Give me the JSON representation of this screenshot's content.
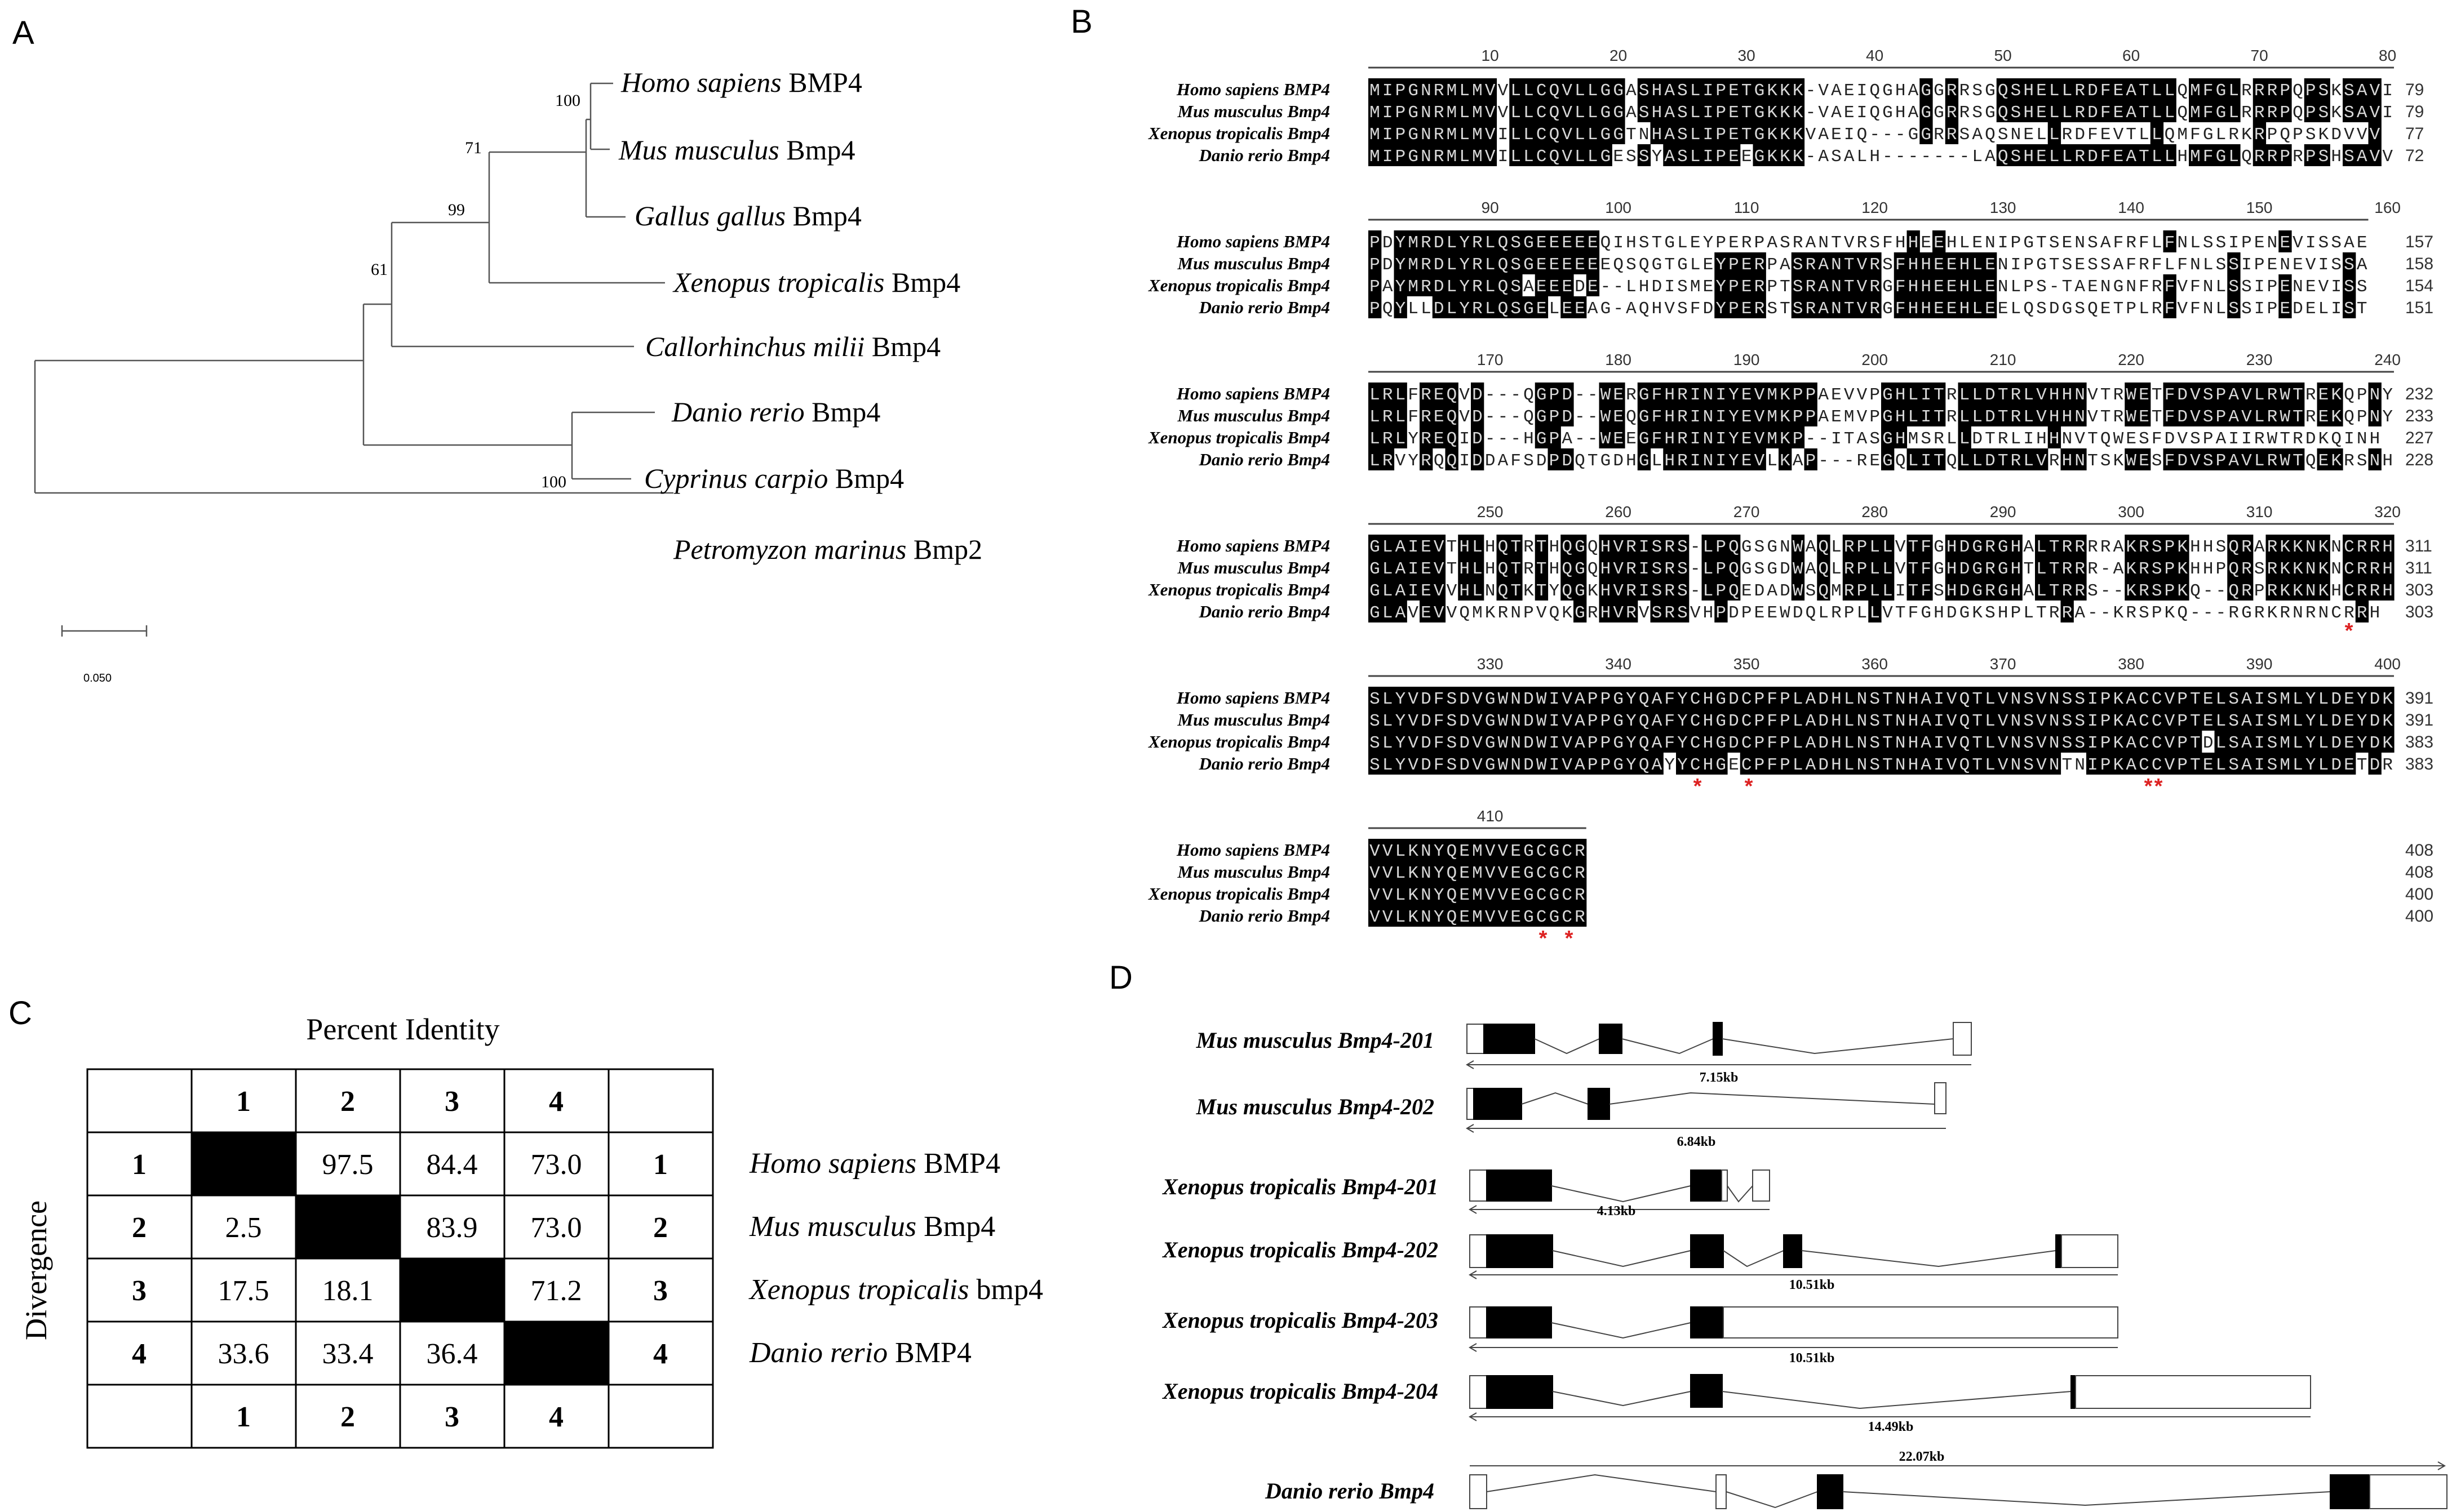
{
  "panels": {
    "A": {
      "label": "A",
      "taxa": [
        {
          "genus": "Homo sapiens",
          "gene": "BMP4"
        },
        {
          "genus": "Mus musculus",
          "gene": "Bmp4"
        },
        {
          "genus": "Gallus gallus",
          "gene": "Bmp4"
        },
        {
          "genus": "Xenopus tropicalis",
          "gene": "Bmp4"
        },
        {
          "genus": "Callorhinchus milii",
          "gene": "Bmp4"
        },
        {
          "genus": "Danio rerio",
          "gene": "Bmp4"
        },
        {
          "genus": "Cyprinus carpio",
          "gene": "Bmp4"
        },
        {
          "genus": "Petromyzon marinus",
          "gene": "Bmp2"
        }
      ],
      "bootstrap": {
        "homo_mus": "100",
        "gallus": "71",
        "xenopus": "99",
        "callorhinchus": "61",
        "danio_cyprinus": "100"
      },
      "scale": "0.050"
    },
    "B": {
      "label": "B",
      "species": [
        "Homo sapiens  BMP4",
        "Mus musculus Bmp4",
        "Xenopus tropicalis Bmp4",
        "Danio rerio Bmp4"
      ],
      "blocks": [
        {
          "ticks": [
            "10",
            "20",
            "30",
            "40",
            "50",
            "60",
            "70",
            "80"
          ],
          "seqs": [
            "MIPGNRMLMVVLLCQVLLGGASHASLIPETGKKK-VAEIQGHAGGRRSGQSHELLRDFEATLLQMFGLRRRPQPSKSAVI",
            "MIPGNRMLMVVLLCQVLLGGASHASLIPETGKKK-VAEIQGHAGGRRSGQSHELLRDFEATLLQMFGLRRRPQPSKSAVI",
            "MIPGNRMLMVILLCQVLLGGTNHASLIPETGKKKVAEIQ---GGRRSAQSNELLRDFEVTLLQMFGLRKRPQPSKDVVV",
            "MIPGNRMLMVILLCQVLLGESSYASLIPEEGKKK-ASALH-------LAQSHELLRDFEATLLHMFGLQRRPRPSHSAVV"
          ],
          "ends": [
            "79",
            "79",
            "77",
            "72"
          ]
        },
        {
          "ticks": [
            "90",
            "100",
            "110",
            "120",
            "130",
            "140",
            "150",
            "160"
          ],
          "seqs": [
            "PDYMRDLYRLQSGEEEEEQIHSTGLEYPERPASRANTVRSFHHEEHLENIPGTSENSAFRFLFNLSSIPENEVISSAE",
            "PDYMRDLYRLQSGEEEEEEQSQGTGLEYPERPASRANTVRSFHHEEHLENIPGTSESSAFRFLFNLSSIPENEVISSAE",
            "PAYMRDLYRLQSAEEEDE--LHDISMEYPERPTSRANTVRGFHHEEHLENLPS-TAENGNFRFVFNLSSIPENEVISSAE",
            "PQYLLDLYRLQSGELEEAG-AQHVSFDYPERSTSRANTVRGFHHEEHLEELQSDGSQETPLRFVFNLSSIPEDELISTAE"
          ],
          "ends": [
            "157",
            "158",
            "154",
            "151"
          ]
        },
        {
          "ticks": [
            "170",
            "180",
            "190",
            "200",
            "210",
            "220",
            "230",
            "240"
          ],
          "seqs": [
            "LRLFREQVD---QGPD--WERGFHRINIYEVMKPPAEVVPGHLITRLLDTRLVHHNVTRWETFDVSPAVLRWTREKQPNY",
            "LRLFREQVD---QGPD--WEQGFHRINIYEVMKPPAEMVPGHLITRLLDTRLVHHNVTRWETFDVSPAVLRWTREKQPNY",
            "LRLYREQID---HGPA--WEEGFHRINIYEVMKP--ITASGHMSRLLDTRLIHHNVTQWESFDVSPAIIRWTRDKQINH",
            "LRVYRQQIDDAFSDPDQTGDHGLHRINIYEVLKAP---REGQLITQLLDTRLVRHNTSKWESFDVSPAVLRWTQEKRSNH"
          ],
          "ends": [
            "232",
            "233",
            "227",
            "228"
          ]
        },
        {
          "ticks": [
            "250",
            "260",
            "270",
            "280",
            "290",
            "300",
            "310",
            "320"
          ],
          "seqs": [
            "GLAIEVTHLHQTRTHQGQHVRISRS-LPQGSGNWAQLRPLLVTFGHDGRGHALTRRRRAKRSPKHHSQRARKKNKNCRRH",
            "GLAIEVTHLHQTRTHQGQHVRISRS-LPQGSGDWAQLRPLLVTFGHDGRGHTLTRRR-AKRSPKHHPQRSRKKNKNCRRH",
            "GLAIEVVHLNQTKTYQGKHVRISRS-LPQEDADWSQMRPLLITFSHDGRGHALTRRS--KRSPKQ--QRPRKKNKHCRRH",
            "GLAVEVVQMKRNPVQKGRHVRVSRSVHPDPEEWDQLRPLLVTFGHDGKSHPLTRRA--KRSPKQ---RGRKRNRNCRRH"
          ],
          "ends": [
            "311",
            "311",
            "303",
            "303"
          ]
        },
        {
          "ticks": [
            "330",
            "340",
            "350",
            "360",
            "370",
            "380",
            "390",
            "400"
          ],
          "seqs": [
            "SLYVDFSDVGWNDWIVAPPGYQAFYCHGDCPFPLADHLNSTNHAIVQTLVNSVNSSIPKACCVPTELSAISMLYLDEYDK",
            "SLYVDFSDVGWNDWIVAPPGYQAFYCHGDCPFPLADHLNSTNHAIVQTLVNSVNSSIPKACCVPTELSAISMLYLDEYDK",
            "SLYVDFSDVGWNDWIVAPPGYQAFYCHGDCPFPLADHLNSTNHAIVQTLVNSVNSSIPKACCVPTDLSAISMLYLDEYDK",
            "SLYVDFSDVGWNDWIVAPPGYQAYYCHGECPFPLADHLNSTNHAIVQTLVNSVNTNIPKACCVPTELSAISMLYLDETDR"
          ],
          "ends": [
            "391",
            "391",
            "383",
            "383"
          ]
        },
        {
          "ticks": [
            "410"
          ],
          "seqs": [
            "VVLKNYQEMVVEGCGCR",
            "VVLKNYQEMVVEGCGCR",
            "VVLKNYQEMVVEGCGCR",
            "VVLKNYQEMVVEGCGCR"
          ],
          "ends": [
            "408",
            "408",
            "400",
            "400"
          ]
        }
      ]
    },
    "C": {
      "label": "C",
      "title": "Percent Identity",
      "side_label": "Divergence",
      "indices": [
        "1",
        "2",
        "3",
        "4"
      ],
      "matrix": [
        [
          "",
          "97.5",
          "84.4",
          "73.0"
        ],
        [
          "2.5",
          "",
          "83.9",
          "73.0"
        ],
        [
          "17.5",
          "18.1",
          "",
          "71.2"
        ],
        [
          "33.6",
          "33.4",
          "36.4",
          ""
        ]
      ],
      "row_names": [
        {
          "genus": "Homo sapiens",
          "gene": "BMP4"
        },
        {
          "genus": "Mus musculus",
          "gene": "Bmp4"
        },
        {
          "genus": "Xenopus tropicalis",
          "gene": "bmp4"
        },
        {
          "genus": "Danio rerio",
          "gene": "BMP4"
        }
      ]
    },
    "D": {
      "label": "D",
      "transcripts": [
        {
          "name": "Mus musculus Bmp4-201",
          "length": "7.15kb"
        },
        {
          "name": "Mus musculus Bmp4-202",
          "length": "6.84kb"
        },
        {
          "name": "Xenopus tropicalis Bmp4-201",
          "length": "4.13kb"
        },
        {
          "name": "Xenopus tropicalis Bmp4-202",
          "length": "10.51kb"
        },
        {
          "name": "Xenopus tropicalis Bmp4-203",
          "length": "10.51kb"
        },
        {
          "name": "Xenopus tropicalis Bmp4-204",
          "length": "14.49kb"
        },
        {
          "name": "Danio rerio Bmp4",
          "length": "22.07kb"
        }
      ]
    }
  }
}
